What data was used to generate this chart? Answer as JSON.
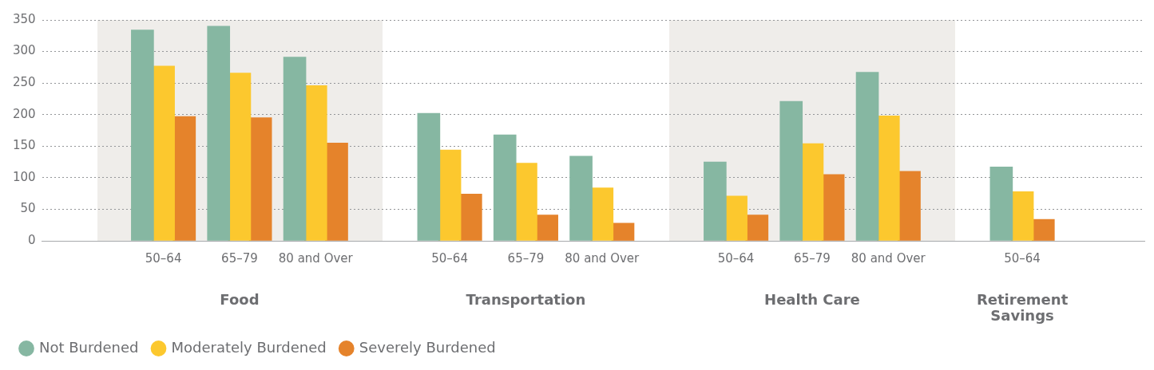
{
  "chart_data": {
    "type": "bar",
    "categories": [
      "50–64",
      "65–79",
      "80 and Over",
      "50–64",
      "65–79",
      "80 and Over",
      "50–64",
      "65–79",
      "80 and Over",
      "50–64"
    ],
    "series": [
      {
        "name": "Not Burdened",
        "color": "#86b7a2",
        "values": [
          334,
          340,
          291,
          202,
          168,
          134,
          125,
          221,
          267,
          117
        ]
      },
      {
        "name": "Moderately Burdened",
        "color": "#fcc82e",
        "values": [
          277,
          266,
          246,
          144,
          123,
          84,
          71,
          154,
          198,
          78
        ]
      },
      {
        "name": "Severely Burdened",
        "color": "#e5832b",
        "values": [
          197,
          195,
          155,
          74,
          41,
          28,
          41,
          105,
          110,
          34
        ]
      }
    ],
    "ylim": [
      0,
      350
    ],
    "yticks": [
      0,
      50,
      100,
      150,
      200,
      250,
      300,
      350
    ],
    "grid": "y",
    "legend": "bottom left",
    "annotations": [
      "Food",
      "Transportation",
      "Health Care",
      "Retirement Savings"
    ]
  }
}
